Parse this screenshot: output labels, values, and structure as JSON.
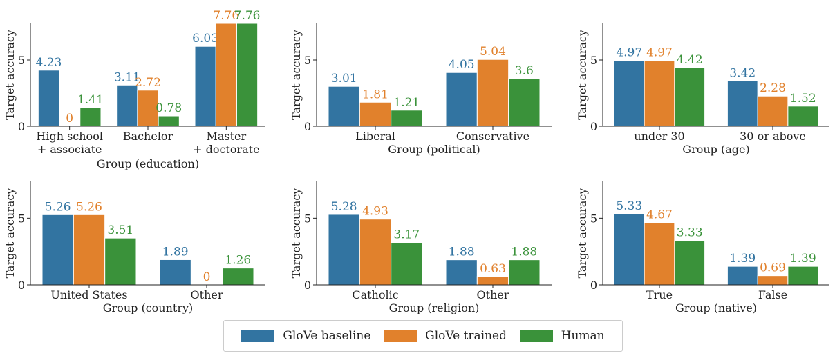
{
  "chart_data": [
    {
      "type": "bar",
      "categories": [
        "High school\n+ associate",
        "Bachelor",
        "Master\n+ doctorate"
      ],
      "series": [
        {
          "name": "GloVe baseline",
          "values": [
            4.23,
            3.11,
            6.03
          ],
          "labels": [
            "4.23",
            "3.11",
            "6.03"
          ]
        },
        {
          "name": "GloVe trained",
          "values": [
            0,
            2.72,
            7.76
          ],
          "labels": [
            "0",
            "2.72",
            "7.76"
          ]
        },
        {
          "name": "Human",
          "values": [
            1.41,
            0.78,
            7.76
          ],
          "labels": [
            "1.41",
            "0.78",
            "7.76"
          ]
        }
      ],
      "xlabel": "Group (education)",
      "ylabel": "Target accuracy",
      "ylim": [
        0,
        7.76
      ],
      "yticks": [
        "0",
        "5"
      ],
      "grid": false
    },
    {
      "type": "bar",
      "categories": [
        "Liberal",
        "Conservative"
      ],
      "series": [
        {
          "name": "GloVe baseline",
          "values": [
            3.01,
            4.05
          ],
          "labels": [
            "3.01",
            "4.05"
          ]
        },
        {
          "name": "GloVe trained",
          "values": [
            1.81,
            5.04
          ],
          "labels": [
            "1.81",
            "5.04"
          ]
        },
        {
          "name": "Human",
          "values": [
            1.21,
            3.6
          ],
          "labels": [
            "1.21",
            "3.6"
          ]
        }
      ],
      "xlabel": "Group (political)",
      "ylabel": "Target accuracy",
      "ylim": [
        0,
        7.76
      ],
      "yticks": [
        "0",
        "5"
      ],
      "grid": false
    },
    {
      "type": "bar",
      "categories": [
        "under 30",
        "30 or above"
      ],
      "series": [
        {
          "name": "GloVe baseline",
          "values": [
            4.97,
            3.42
          ],
          "labels": [
            "4.97",
            "3.42"
          ]
        },
        {
          "name": "GloVe trained",
          "values": [
            4.97,
            2.28
          ],
          "labels": [
            "4.97",
            "2.28"
          ]
        },
        {
          "name": "Human",
          "values": [
            4.42,
            1.52
          ],
          "labels": [
            "4.42",
            "1.52"
          ]
        }
      ],
      "xlabel": "Group (age)",
      "ylabel": "Target accuracy",
      "ylim": [
        0,
        7.76
      ],
      "yticks": [
        "0",
        "5"
      ],
      "grid": false
    },
    {
      "type": "bar",
      "categories": [
        "United States",
        "Other"
      ],
      "series": [
        {
          "name": "GloVe baseline",
          "values": [
            5.26,
            1.89
          ],
          "labels": [
            "5.26",
            "1.89"
          ]
        },
        {
          "name": "GloVe trained",
          "values": [
            5.26,
            0
          ],
          "labels": [
            "5.26",
            "0"
          ]
        },
        {
          "name": "Human",
          "values": [
            3.51,
            1.26
          ],
          "labels": [
            "3.51",
            "1.26"
          ]
        }
      ],
      "xlabel": "Group (country)",
      "ylabel": "Target accuracy",
      "ylim": [
        0,
        7.76
      ],
      "yticks": [
        "0",
        "5"
      ],
      "grid": false
    },
    {
      "type": "bar",
      "categories": [
        "Catholic",
        "Other"
      ],
      "series": [
        {
          "name": "GloVe baseline",
          "values": [
            5.28,
            1.88
          ],
          "labels": [
            "5.28",
            "1.88"
          ]
        },
        {
          "name": "GloVe trained",
          "values": [
            4.93,
            0.63
          ],
          "labels": [
            "4.93",
            "0.63"
          ]
        },
        {
          "name": "Human",
          "values": [
            3.17,
            1.88
          ],
          "labels": [
            "3.17",
            "1.88"
          ]
        }
      ],
      "xlabel": "Group (religion)",
      "ylabel": "Target accuracy",
      "ylim": [
        0,
        7.76
      ],
      "yticks": [
        "0",
        "5"
      ],
      "grid": false
    },
    {
      "type": "bar",
      "categories": [
        "True",
        "False"
      ],
      "series": [
        {
          "name": "GloVe baseline",
          "values": [
            5.33,
            1.39
          ],
          "labels": [
            "5.33",
            "1.39"
          ]
        },
        {
          "name": "GloVe trained",
          "values": [
            4.67,
            0.69
          ],
          "labels": [
            "4.67",
            "0.69"
          ]
        },
        {
          "name": "Human",
          "values": [
            3.33,
            1.39
          ],
          "labels": [
            "3.33",
            "1.39"
          ]
        }
      ],
      "xlabel": "Group (native)",
      "ylabel": "Target accuracy",
      "ylim": [
        0,
        7.76
      ],
      "yticks": [
        "0",
        "5"
      ],
      "grid": false
    }
  ],
  "legend": {
    "placement": "bottom-center",
    "items": [
      {
        "label": "GloVe baseline",
        "color": "#3274a1"
      },
      {
        "label": "GloVe trained",
        "color": "#e1812c"
      },
      {
        "label": "Human",
        "color": "#3a923a"
      }
    ]
  },
  "colors": [
    "#3274a1",
    "#e1812c",
    "#3a923a"
  ]
}
